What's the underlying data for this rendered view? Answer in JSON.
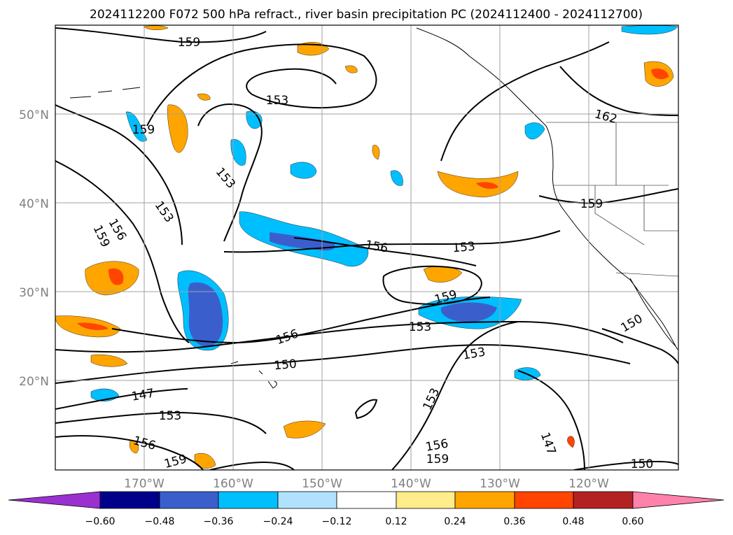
{
  "map": {
    "title": "2024112200 F072 500 hPa refract., river basin precipitation PC (2024112400 - 2024112700)",
    "lat_labels": [
      "50°N",
      "40°N",
      "30°N",
      "20°N"
    ],
    "lon_labels": [
      "170°W",
      "160°W",
      "150°W",
      "140°W",
      "130°W",
      "120°W"
    ],
    "contour_labels": [
      "159",
      "153",
      "159",
      "153",
      "153",
      "156",
      "159",
      "156",
      "153",
      "159",
      "156",
      "153",
      "150",
      "153",
      "147",
      "153",
      "156",
      "159",
      "153",
      "156",
      "159",
      "147",
      "150",
      "150",
      "159",
      "162"
    ],
    "colors": {
      "neg_060": "#9b30d0",
      "neg_048": "#00008b",
      "neg_036": "#3a5fcd",
      "neg_024": "#00bfff",
      "neg_012": "#b0e2ff",
      "zero": "#ffffff",
      "pos_012": "#ffec8b",
      "pos_024": "#ffa500",
      "pos_036": "#ff4500",
      "pos_048": "#b22222",
      "pos_060": "#ff82ab"
    }
  },
  "colorbar": {
    "tick_labels": [
      "−0.60",
      "−0.48",
      "−0.36",
      "−0.24",
      "−0.12",
      "0.12",
      "0.24",
      "0.36",
      "0.48",
      "0.60"
    ]
  }
}
